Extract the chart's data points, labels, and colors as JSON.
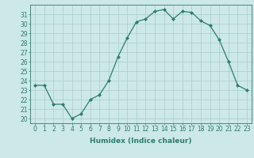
{
  "xlabel": "Humidex (Indice chaleur)",
  "x": [
    0,
    1,
    2,
    3,
    4,
    5,
    6,
    7,
    8,
    9,
    10,
    11,
    12,
    13,
    14,
    15,
    16,
    17,
    18,
    19,
    20,
    21,
    22,
    23
  ],
  "y": [
    23.5,
    23.5,
    21.5,
    21.5,
    20.0,
    20.5,
    22.0,
    22.5,
    24.0,
    26.5,
    28.5,
    30.2,
    30.5,
    31.3,
    31.5,
    30.5,
    31.3,
    31.2,
    30.3,
    29.8,
    28.3,
    26.0,
    23.5,
    23.0
  ],
  "line_color": "#2d7d6e",
  "marker": "D",
  "marker_size": 2,
  "bg_color": "#cce8e8",
  "grid_color": "#aacccc",
  "ylim": [
    19.5,
    32
  ],
  "yticks": [
    20,
    21,
    22,
    23,
    24,
    25,
    26,
    27,
    28,
    29,
    30,
    31
  ],
  "label_fontsize": 6.5,
  "tick_fontsize": 5.5
}
